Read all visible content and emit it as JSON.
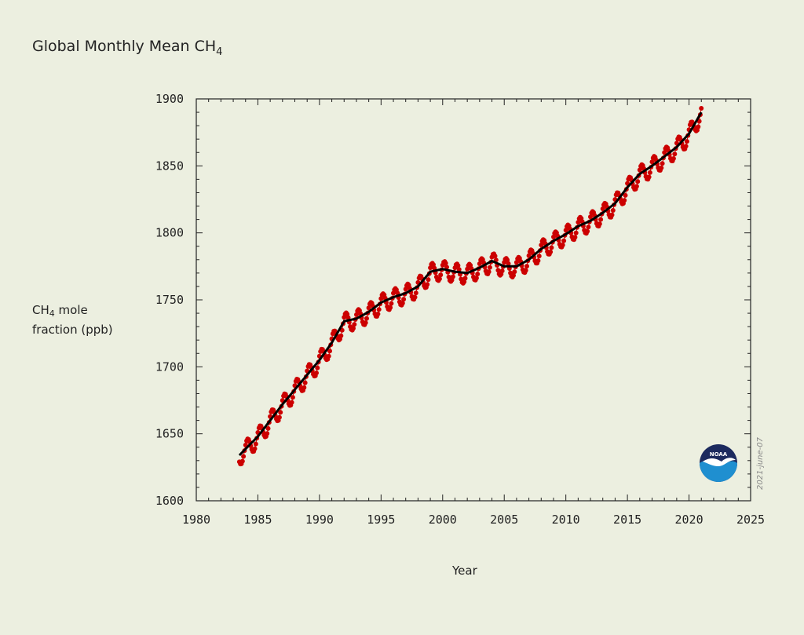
{
  "page": {
    "title_main": "Global Monthly Mean CH",
    "title_sub": "4",
    "date_stamp": "2021-june-07",
    "logo_text": "NOAA"
  },
  "colors": {
    "background": "#ecefe0",
    "monthly_points": "#cc0000",
    "trend_line": "#000000",
    "logo_dark": "#1c2a5e",
    "logo_light": "#1f8fd0"
  },
  "chart_data": {
    "type": "line",
    "title": "Global Monthly Mean CH4",
    "ylabel_main": "CH",
    "ylabel_sub": "4",
    "ylabel_rest": " mole",
    "ylabel_line2": "fraction (ppb)",
    "xlabel": "Year",
    "xlim": [
      1980,
      2025
    ],
    "ylim": [
      1600,
      1900
    ],
    "xticks": [
      1980,
      1985,
      1990,
      1995,
      2000,
      2005,
      2010,
      2015,
      2020,
      2025
    ],
    "yticks": [
      1600,
      1650,
      1700,
      1750,
      1800,
      1850,
      1900
    ],
    "grid": false,
    "series": [
      {
        "kind": "monthly_mean",
        "style": "points",
        "x_start": 1983.5,
        "x_end": 2021.0,
        "seasonal_amplitude_ppb": 7
      },
      {
        "kind": "trend",
        "style": "line",
        "x": [
          1983.5,
          1985,
          1986,
          1987,
          1988,
          1989,
          1990,
          1991,
          1992,
          1993,
          1994,
          1995,
          1996,
          1997,
          1998,
          1999,
          2000,
          2001,
          2002,
          2003,
          2004,
          2005,
          2006,
          2007,
          2008,
          2009,
          2010,
          2011,
          2012,
          2013,
          2014,
          2015,
          2016,
          2017,
          2018,
          2019,
          2020,
          2021
        ],
        "y": [
          1634,
          1648,
          1660,
          1672,
          1683,
          1694,
          1705,
          1718,
          1734,
          1736,
          1741,
          1748,
          1752,
          1755,
          1760,
          1771,
          1773,
          1771,
          1770,
          1774,
          1779,
          1775,
          1775,
          1780,
          1788,
          1794,
          1799,
          1805,
          1809,
          1815,
          1822,
          1834,
          1844,
          1850,
          1857,
          1864,
          1874,
          1890
        ]
      }
    ]
  }
}
